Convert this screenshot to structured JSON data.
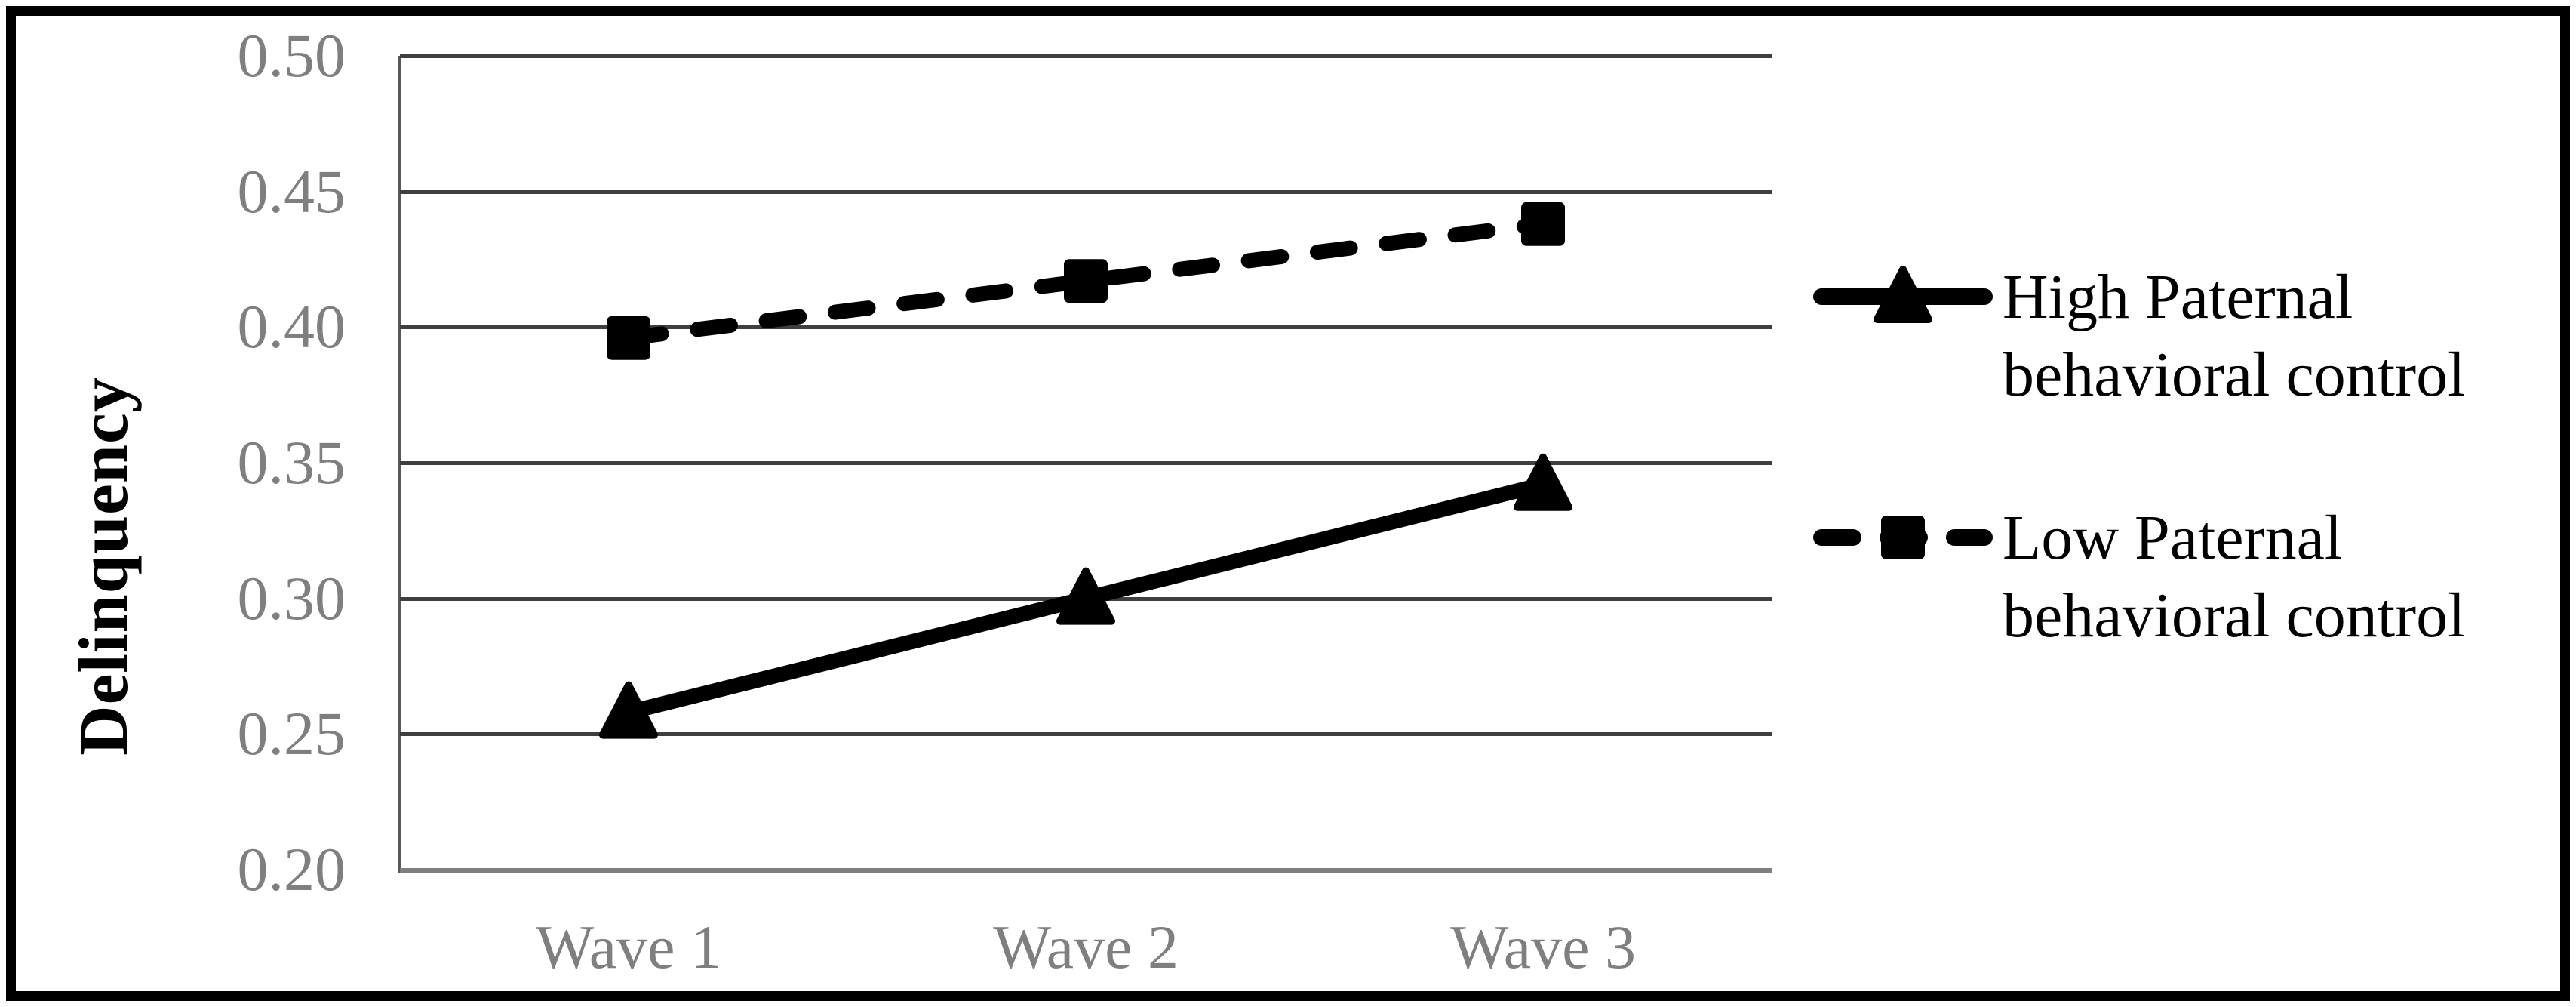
{
  "figure": {
    "type_description": "Line chart with two series across three waves",
    "background": "#ffffff",
    "border_color": "#000000"
  },
  "chart_data": {
    "type": "line",
    "categories": [
      "Wave 1",
      "Wave 2",
      "Wave 3"
    ],
    "series": [
      {
        "name": "High Paternal behavioral control",
        "values": [
          0.258,
          0.3,
          0.342
        ],
        "marker": "triangle",
        "line_style": "solid",
        "color": "#000000"
      },
      {
        "name": "Low Paternal behavioral control",
        "values": [
          0.396,
          0.417,
          0.438
        ],
        "marker": "square",
        "line_style": "dashed",
        "color": "#000000"
      }
    ],
    "title": "",
    "xlabel": "",
    "ylabel": "Delinquency",
    "ylim": [
      0.2,
      0.5
    ],
    "ytick_step": 0.05,
    "yticks": [
      "0.50",
      "0.45",
      "0.40",
      "0.35",
      "0.30",
      "0.25",
      "0.20"
    ],
    "grid": true,
    "legend_position": "right",
    "colors": {
      "gridline": "#3f3f3f",
      "category_axis_line": "#7f7f7f",
      "value_axis_line": "#595959",
      "tick_label": "#7f7f7f",
      "axis_title": "#000000",
      "legend_text": "#000000",
      "series": "#000000"
    }
  },
  "legend": {
    "entries": [
      {
        "lines": [
          "High Paternal",
          "behavioral control"
        ],
        "marker": "triangle",
        "line_style": "solid"
      },
      {
        "lines": [
          "Low Paternal",
          "behavioral control"
        ],
        "marker": "square",
        "line_style": "dashed"
      }
    ]
  }
}
